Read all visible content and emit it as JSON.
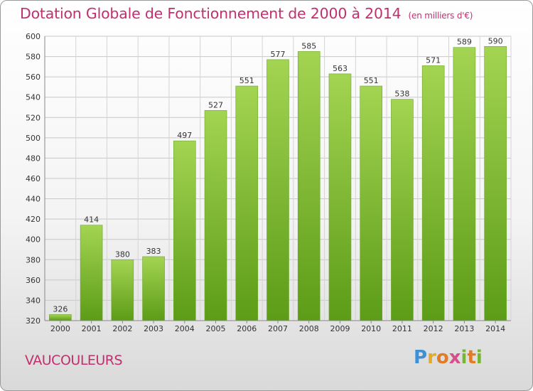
{
  "header": {
    "title": "Dotation Globale de Fonctionnement de 2000 à 2014",
    "subtitle": "(en milliers d'€)"
  },
  "footer": {
    "town": "VAUCOULEURS",
    "logo": "Proxiti"
  },
  "colors": {
    "title": "#c0306e",
    "bar_light": "#9fd24f",
    "bar_dark": "#5f9e1a",
    "grid": "#c8c8c8"
  },
  "chart_data": {
    "type": "bar",
    "title": "Dotation Globale de Fonctionnement de 2000 à 2014",
    "subtitle": "(en milliers d'€)",
    "xlabel": "",
    "ylabel": "",
    "categories": [
      "2000",
      "2001",
      "2002",
      "2003",
      "2004",
      "2005",
      "2006",
      "2007",
      "2008",
      "2009",
      "2010",
      "2011",
      "2012",
      "2013",
      "2014"
    ],
    "values": [
      326,
      414,
      380,
      383,
      497,
      527,
      551,
      577,
      585,
      563,
      551,
      538,
      571,
      589,
      590
    ],
    "ylim": [
      320,
      600
    ],
    "yticks": [
      320,
      340,
      360,
      380,
      400,
      420,
      440,
      460,
      480,
      500,
      520,
      540,
      560,
      580,
      600
    ],
    "grid": true,
    "legend": "none"
  }
}
